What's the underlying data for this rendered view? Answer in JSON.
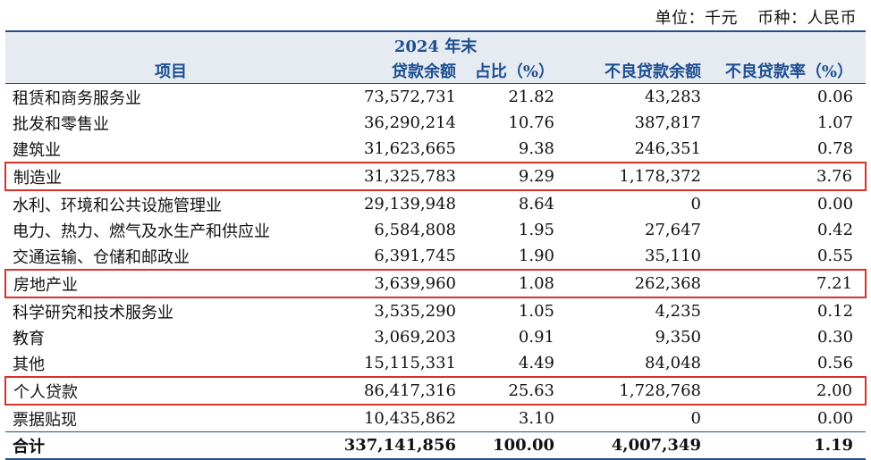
{
  "unit_label": "单位：千元",
  "currency_label": "币种：人民币",
  "period": "2024 年末",
  "headers": [
    "项目",
    "贷款余额",
    "占比（%）",
    "不良贷款余额",
    "不良贷款率（%）"
  ],
  "rows": [
    {
      "name": "租赁和商务服务业",
      "balance": "73,572,731",
      "share": "21.82",
      "npl": "43,283",
      "npl_rate": "0.06",
      "highlight": false
    },
    {
      "name": "批发和零售业",
      "balance": "36,290,214",
      "share": "10.76",
      "npl": "387,817",
      "npl_rate": "1.07",
      "highlight": false
    },
    {
      "name": "建筑业",
      "balance": "31,623,665",
      "share": "9.38",
      "npl": "246,351",
      "npl_rate": "0.78",
      "highlight": false
    },
    {
      "name": "制造业",
      "balance": "31,325,783",
      "share": "9.29",
      "npl": "1,178,372",
      "npl_rate": "3.76",
      "highlight": true
    },
    {
      "name": "水利、环境和公共设施管理业",
      "balance": "29,139,948",
      "share": "8.64",
      "npl": "0",
      "npl_rate": "0.00",
      "highlight": false
    },
    {
      "name": "电力、热力、燃气及水生产和供应业",
      "balance": "6,584,808",
      "share": "1.95",
      "npl": "27,647",
      "npl_rate": "0.42",
      "highlight": false
    },
    {
      "name": "交通运输、仓储和邮政业",
      "balance": "6,391,745",
      "share": "1.90",
      "npl": "35,110",
      "npl_rate": "0.55",
      "highlight": false
    },
    {
      "name": "房地产业",
      "balance": "3,639,960",
      "share": "1.08",
      "npl": "262,368",
      "npl_rate": "7.21",
      "highlight": true
    },
    {
      "name": "科学研究和技术服务业",
      "balance": "3,535,290",
      "share": "1.05",
      "npl": "4,235",
      "npl_rate": "0.12",
      "highlight": false
    },
    {
      "name": "教育",
      "balance": "3,069,203",
      "share": "0.91",
      "npl": "9,350",
      "npl_rate": "0.30",
      "highlight": false
    },
    {
      "name": "其他",
      "balance": "15,115,331",
      "share": "4.49",
      "npl": "84,048",
      "npl_rate": "0.56",
      "highlight": false
    },
    {
      "name": "个人贷款",
      "balance": "86,417,316",
      "share": "25.63",
      "npl": "1,728,768",
      "npl_rate": "2.00",
      "highlight": true
    },
    {
      "name": "票据贴现",
      "balance": "10,435,862",
      "share": "3.10",
      "npl": "0",
      "npl_rate": "0.00",
      "highlight": false
    }
  ],
  "total": {
    "name": "合计",
    "balance": "337,141,856",
    "share": "100.00",
    "npl": "4,007,349",
    "npl_rate": "1.19"
  },
  "colors": {
    "header_text": "#1d4f91",
    "header_bg": "#e6ebf2",
    "highlight_border": "#d9302a"
  }
}
